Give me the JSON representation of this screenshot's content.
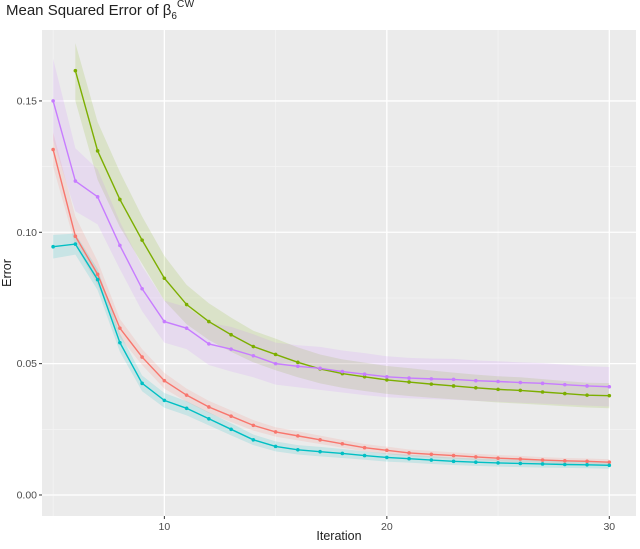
{
  "chart_data": {
    "type": "line",
    "title": {
      "prefix": "Mean Squared Error of ",
      "symbol": "β",
      "accent": "^",
      "subscript": "6",
      "superscript": "CW"
    },
    "xlabel": "Iteration",
    "ylabel": "Error",
    "xlim": [
      4.5,
      31.2
    ],
    "ylim": [
      -0.008,
      0.177
    ],
    "x_ticks": [
      10,
      20,
      30
    ],
    "x_tick_labels": [
      "10",
      "20",
      "30"
    ],
    "y_ticks": [
      0.0,
      0.05,
      0.1,
      0.15
    ],
    "y_tick_labels": [
      "0.00",
      "0.05",
      "0.10",
      "0.15"
    ],
    "grid": true,
    "legend": "none",
    "panel_background": "#ebebeb",
    "series": [
      {
        "color": "#f8766d",
        "x": [
          5,
          6,
          7,
          8,
          9,
          10,
          11,
          12,
          13,
          14,
          15,
          16,
          17,
          18,
          19,
          20,
          21,
          22,
          23,
          24,
          25,
          26,
          27,
          28,
          29,
          30
        ],
        "values": [
          0.1315,
          0.0985,
          0.084,
          0.0635,
          0.0525,
          0.0435,
          0.038,
          0.0335,
          0.03,
          0.0265,
          0.024,
          0.0225,
          0.021,
          0.0195,
          0.018,
          0.017,
          0.016,
          0.0155,
          0.015,
          0.0145,
          0.014,
          0.0137,
          0.0133,
          0.013,
          0.0128,
          0.0125
        ],
        "lower": [
          0.125,
          0.095,
          0.08,
          0.06,
          0.0495,
          0.0405,
          0.0355,
          0.0312,
          0.0278,
          0.0245,
          0.0222,
          0.0208,
          0.0194,
          0.018,
          0.0166,
          0.0156,
          0.0147,
          0.0142,
          0.0138,
          0.0133,
          0.0128,
          0.0125,
          0.0122,
          0.0119,
          0.0117,
          0.0114
        ],
        "upper": [
          0.138,
          0.106,
          0.089,
          0.067,
          0.0555,
          0.0465,
          0.0405,
          0.0358,
          0.0322,
          0.0285,
          0.0258,
          0.0242,
          0.0226,
          0.021,
          0.0194,
          0.0184,
          0.0173,
          0.0168,
          0.0162,
          0.0157,
          0.0152,
          0.0149,
          0.0144,
          0.0141,
          0.0139,
          0.0136
        ]
      },
      {
        "color": "#7cae00",
        "x": [
          6,
          7,
          8,
          9,
          10,
          11,
          12,
          13,
          14,
          15,
          16,
          17,
          18,
          19,
          20,
          21,
          22,
          23,
          24,
          25,
          26,
          27,
          28,
          29,
          30
        ],
        "values": [
          0.1615,
          0.131,
          0.1125,
          0.097,
          0.0825,
          0.0725,
          0.066,
          0.061,
          0.0565,
          0.0535,
          0.0505,
          0.048,
          0.0462,
          0.045,
          0.0438,
          0.043,
          0.0422,
          0.0415,
          0.0408,
          0.0402,
          0.0398,
          0.0392,
          0.0386,
          0.038,
          0.0378
        ],
        "lower": [
          0.15,
          0.12,
          0.102,
          0.088,
          0.074,
          0.065,
          0.059,
          0.0545,
          0.0505,
          0.0475,
          0.0448,
          0.0425,
          0.0408,
          0.0396,
          0.0385,
          0.0377,
          0.037,
          0.0364,
          0.0358,
          0.0352,
          0.0348,
          0.0343,
          0.0338,
          0.0333,
          0.033
        ],
        "upper": [
          0.172,
          0.142,
          0.123,
          0.106,
          0.091,
          0.08,
          0.073,
          0.0675,
          0.0625,
          0.0595,
          0.0562,
          0.0535,
          0.0516,
          0.0504,
          0.0491,
          0.0483,
          0.0474,
          0.0466,
          0.0458,
          0.0452,
          0.0448,
          0.0441,
          0.0434,
          0.0427,
          0.0426
        ]
      },
      {
        "color": "#00bfc4",
        "x": [
          5,
          6,
          7,
          8,
          9,
          10,
          11,
          12,
          13,
          14,
          15,
          16,
          17,
          18,
          19,
          20,
          21,
          22,
          23,
          24,
          25,
          26,
          27,
          28,
          29,
          30
        ],
        "values": [
          0.0945,
          0.0955,
          0.082,
          0.058,
          0.0425,
          0.036,
          0.033,
          0.029,
          0.025,
          0.021,
          0.0185,
          0.0172,
          0.0165,
          0.0158,
          0.015,
          0.0143,
          0.0138,
          0.0133,
          0.0128,
          0.0125,
          0.0122,
          0.012,
          0.0118,
          0.0116,
          0.0115,
          0.0113
        ],
        "lower": [
          0.09,
          0.0915,
          0.078,
          0.0545,
          0.0395,
          0.0332,
          0.0303,
          0.0265,
          0.0227,
          0.019,
          0.0166,
          0.0154,
          0.0147,
          0.0141,
          0.0134,
          0.0127,
          0.0123,
          0.0118,
          0.0114,
          0.0111,
          0.0108,
          0.0106,
          0.0104,
          0.0103,
          0.0102,
          0.01
        ],
        "upper": [
          0.099,
          0.0995,
          0.086,
          0.0615,
          0.0455,
          0.0388,
          0.0357,
          0.0315,
          0.0273,
          0.023,
          0.0204,
          0.019,
          0.0183,
          0.0175,
          0.0166,
          0.0159,
          0.0153,
          0.0148,
          0.0142,
          0.0139,
          0.0136,
          0.0134,
          0.0132,
          0.0129,
          0.0128,
          0.0126
        ]
      },
      {
        "color": "#c77cff",
        "x": [
          5,
          6,
          7,
          8,
          9,
          10,
          11,
          12,
          13,
          14,
          15,
          16,
          17,
          18,
          19,
          20,
          21,
          22,
          23,
          24,
          25,
          26,
          27,
          28,
          29,
          30
        ],
        "values": [
          0.15,
          0.1195,
          0.1135,
          0.095,
          0.0785,
          0.066,
          0.0635,
          0.0575,
          0.0555,
          0.053,
          0.05,
          0.049,
          0.0482,
          0.047,
          0.046,
          0.045,
          0.0445,
          0.0442,
          0.044,
          0.0435,
          0.0432,
          0.0428,
          0.0425,
          0.042,
          0.0415,
          0.0412
        ],
        "lower": [
          0.135,
          0.108,
          0.103,
          0.086,
          0.07,
          0.058,
          0.0555,
          0.0495,
          0.047,
          0.0448,
          0.042,
          0.041,
          0.04,
          0.039,
          0.038,
          0.0372,
          0.0368,
          0.0365,
          0.0362,
          0.0358,
          0.0355,
          0.0351,
          0.0348,
          0.0344,
          0.034,
          0.0337
        ],
        "upper": [
          0.166,
          0.132,
          0.124,
          0.104,
          0.087,
          0.074,
          0.0715,
          0.0655,
          0.064,
          0.0612,
          0.058,
          0.057,
          0.0564,
          0.055,
          0.054,
          0.0528,
          0.0522,
          0.0519,
          0.0518,
          0.0512,
          0.0509,
          0.0505,
          0.0502,
          0.0496,
          0.049,
          0.0487
        ]
      }
    ]
  }
}
